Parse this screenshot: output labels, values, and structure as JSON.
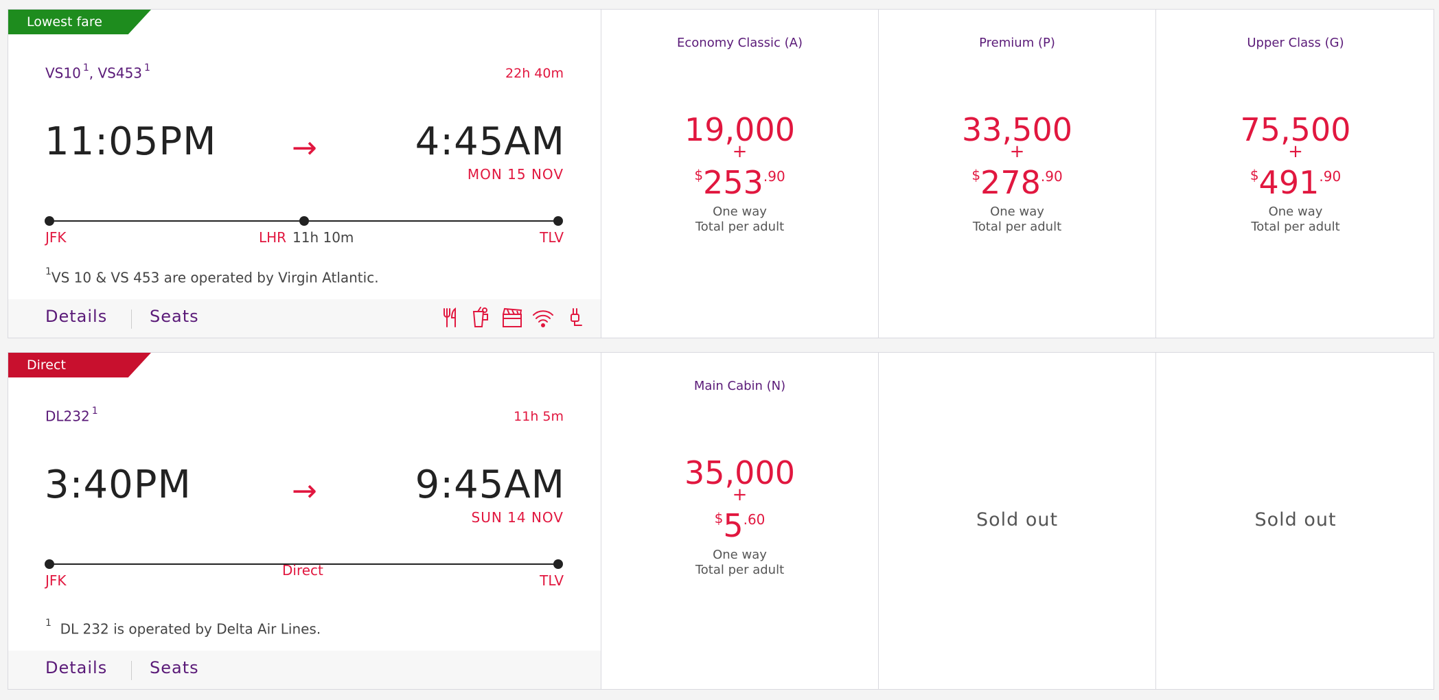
{
  "colors": {
    "purple": "#5a1a78",
    "red": "#e1173f",
    "green": "#1e8c1e",
    "badge_red": "#c8102e"
  },
  "flights": [
    {
      "badge": "Lowest fare",
      "flight_numbers": [
        {
          "code": "VS10",
          "footnote": "1"
        },
        {
          "code": "VS453",
          "footnote": "1"
        }
      ],
      "separator": ",",
      "duration": "22h 40m",
      "depart_time": "11:05PM",
      "arrive_time": "4:45AM",
      "arrive_date": "MON 15 NOV",
      "origin": "JFK",
      "stop": "LHR",
      "layover": "11h  10m",
      "destination": "TLV",
      "note_marker": "1",
      "note": "VS 10 & VS 453 are operated by Virgin Atlantic.",
      "details_label": "Details",
      "seats_label": "Seats",
      "amenities": [
        "meal-icon",
        "drinks-icon",
        "entertainment-icon",
        "wifi-icon",
        "power-icon"
      ],
      "fares": [
        {
          "cabin": "Economy Classic (A)",
          "points": "19,000",
          "plus": "+",
          "currency": "$",
          "dollars": "253",
          "cents": ".90",
          "line1": "One way",
          "line2": "Total per adult"
        },
        {
          "cabin": "Premium (P)",
          "points": "33,500",
          "plus": "+",
          "currency": "$",
          "dollars": "278",
          "cents": ".90",
          "line1": "One way",
          "line2": "Total per adult"
        },
        {
          "cabin": "Upper Class (G)",
          "points": "75,500",
          "plus": "+",
          "currency": "$",
          "dollars": "491",
          "cents": ".90",
          "line1": "One way",
          "line2": "Total per adult"
        }
      ]
    },
    {
      "badge": "Direct",
      "flight_numbers": [
        {
          "code": "DL232",
          "footnote": "1"
        }
      ],
      "duration": "11h 5m",
      "depart_time": "3:40PM",
      "arrive_time": "9:45AM",
      "arrive_date": "SUN 14 NOV",
      "origin": "JFK",
      "stop_label": "Direct",
      "destination": "TLV",
      "note_marker": "1",
      "note": "DL 232 is operated by Delta Air Lines.",
      "details_label": "Details",
      "seats_label": "Seats",
      "fares": [
        {
          "cabin": "Main Cabin (N)",
          "points": "35,000",
          "plus": "+",
          "currency": "$",
          "dollars": "5",
          "cents": ".60",
          "line1": "One way",
          "line2": "Total per adult"
        },
        {
          "status": "Sold out"
        },
        {
          "status": "Sold out"
        }
      ]
    }
  ]
}
